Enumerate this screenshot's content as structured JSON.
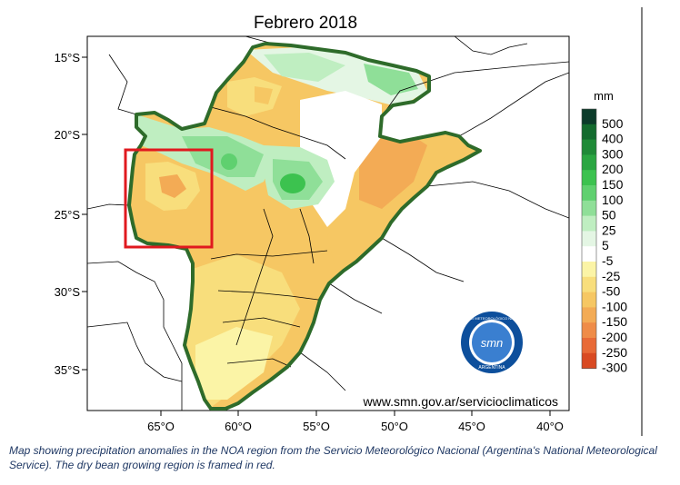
{
  "map": {
    "title": "Febrero 2018",
    "website": "www.smn.gov.ar/servicioclimaticos",
    "lat_ticks": [
      "15°S",
      "20°S",
      "25°S",
      "30°S",
      "35°S"
    ],
    "lon_ticks": [
      "65°O",
      "60°O",
      "55°O",
      "50°O",
      "45°O",
      "40°O"
    ],
    "frame_color": "#e0191f",
    "logo": {
      "center_text": "smn",
      "ring_top": "SERVICIO METEOROLÓGICO NACIONAL",
      "ring_bottom": "ARGENTINA"
    }
  },
  "legend": {
    "unit": "mm",
    "items": [
      {
        "label": "500",
        "color": "#0b3b2a"
      },
      {
        "label": "400",
        "color": "#136b2e"
      },
      {
        "label": "300",
        "color": "#1f8a37"
      },
      {
        "label": "200",
        "color": "#2aa641"
      },
      {
        "label": "150",
        "color": "#3cc24f"
      },
      {
        "label": "100",
        "color": "#5fd06f"
      },
      {
        "label": "50",
        "color": "#8fdf98"
      },
      {
        "label": "25",
        "color": "#bfeec1"
      },
      {
        "label": "5",
        "color": "#e4f6e4"
      },
      {
        "label": "-5",
        "color": "#ffffff"
      },
      {
        "label": "-25",
        "color": "#fbf4a6"
      },
      {
        "label": "-50",
        "color": "#f8de7c"
      },
      {
        "label": "-100",
        "color": "#f6c763"
      },
      {
        "label": "-150",
        "color": "#f3ab55"
      },
      {
        "label": "-200",
        "color": "#ef8c48"
      },
      {
        "label": "-250",
        "color": "#e86a37"
      },
      {
        "label": "-300",
        "color": "#d94a22"
      }
    ]
  },
  "caption": "Map showing precipitation anomalies in the NOA region from the Servicio Meteorológico Nacional (Argentina's National Meteorological Service). The dry bean growing region is framed in red."
}
